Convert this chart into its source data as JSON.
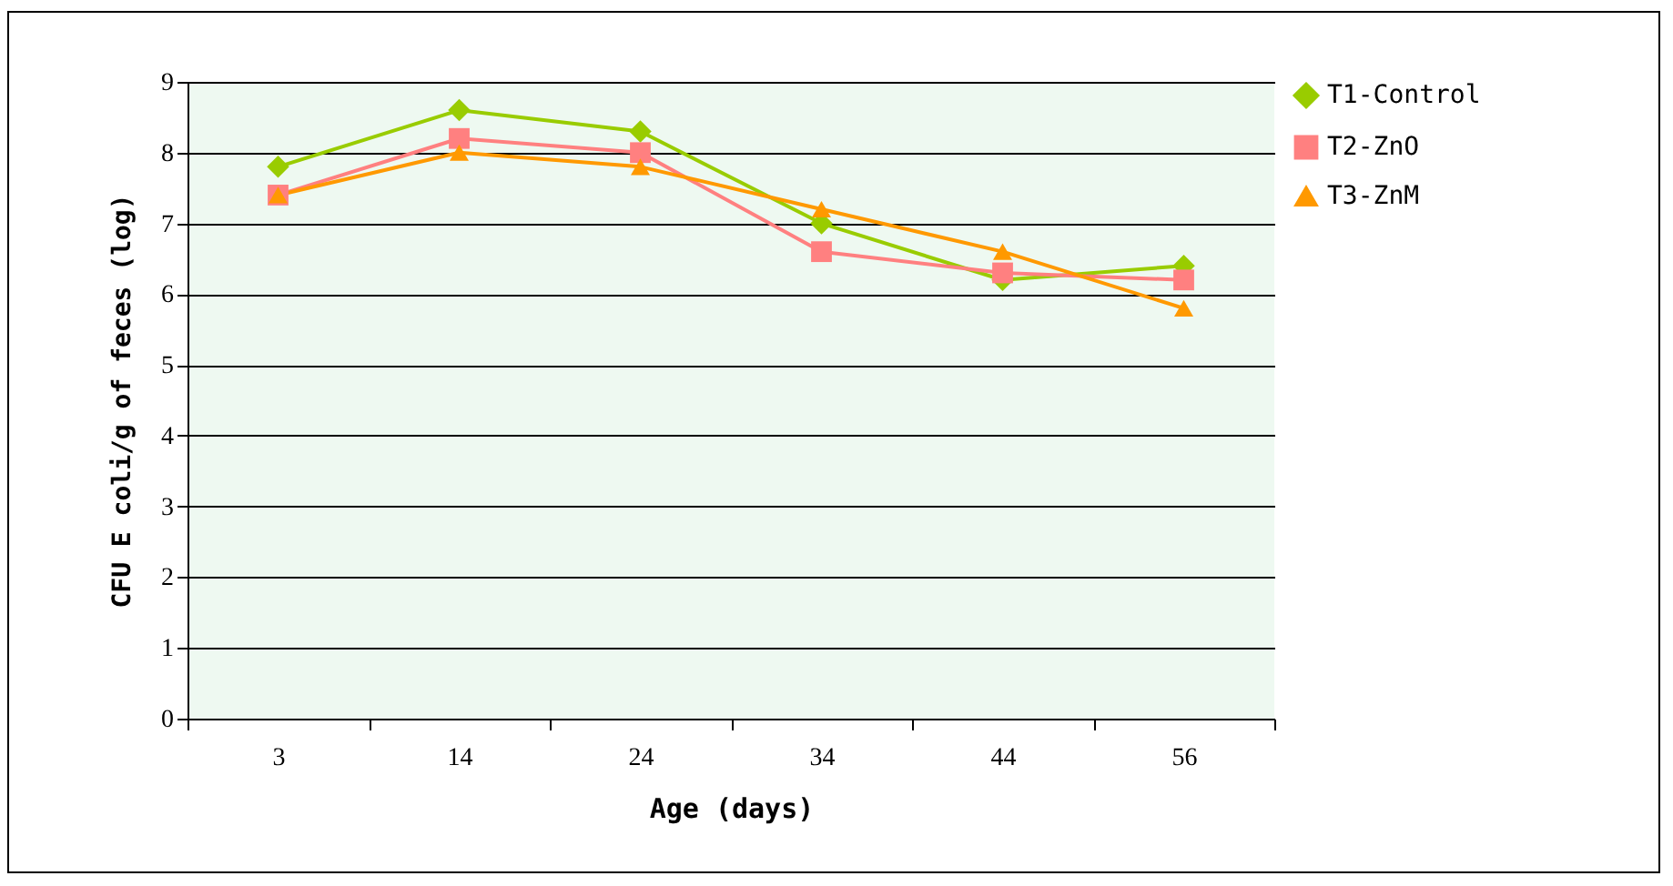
{
  "chart_data": {
    "type": "line",
    "xlabel": "Age (days)",
    "ylabel": "CFU E coli/g of feces (log)",
    "categories": [
      "3",
      "14",
      "24",
      "34",
      "44",
      "56"
    ],
    "series": [
      {
        "name": "T1-Control",
        "color": "#99cc00",
        "marker": "diamond",
        "values": [
          7.8,
          8.6,
          8.3,
          7.0,
          6.2,
          6.4
        ]
      },
      {
        "name": "T2-ZnO",
        "color": "#ff8080",
        "marker": "square",
        "values": [
          7.4,
          8.2,
          8.0,
          6.6,
          6.3,
          6.2
        ]
      },
      {
        "name": "T3-ZnM",
        "color": "#ff9900",
        "marker": "triangle",
        "values": [
          7.4,
          8.0,
          7.8,
          7.2,
          6.6,
          5.8
        ]
      }
    ],
    "ylim": [
      0,
      9
    ],
    "yticks": [
      0,
      1,
      2,
      3,
      4,
      5,
      6,
      7,
      8,
      9
    ],
    "grid": "y",
    "legend": "right",
    "line_style": "solid"
  }
}
